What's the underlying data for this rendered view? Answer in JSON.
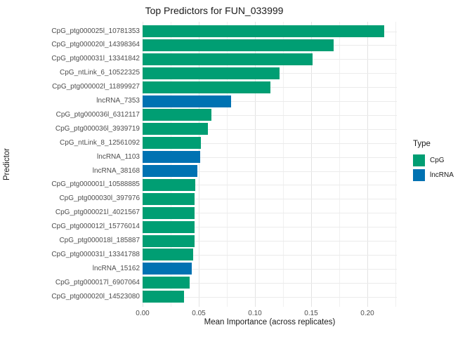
{
  "title": "Top Predictors for FUN_033999",
  "chart_data": {
    "type": "bar",
    "orientation": "horizontal",
    "title": "Top Predictors for FUN_033999",
    "xlabel": "Mean Importance (across replicates)",
    "ylabel": "Predictor",
    "xlim": [
      0,
      0.226
    ],
    "grid": true,
    "x_ticks": [
      0.0,
      0.05,
      0.1,
      0.15,
      0.2
    ],
    "x_tick_labels": [
      "0.00",
      "0.05",
      "0.10",
      "0.15",
      "0.20"
    ],
    "x_minor_ticks": [
      0.025,
      0.075,
      0.125,
      0.175,
      0.225
    ],
    "legend": {
      "title": "Type",
      "position": "right",
      "entries": [
        {
          "label": "CpG",
          "color": "#009E73"
        },
        {
          "label": "lncRNA",
          "color": "#0072B2"
        }
      ]
    },
    "bars": [
      {
        "label": "CpG_ptg000025l_10781353",
        "value": 0.215,
        "type": "CpG"
      },
      {
        "label": "CpG_ptg000020l_14398364",
        "value": 0.17,
        "type": "CpG"
      },
      {
        "label": "CpG_ptg000031l_13341842",
        "value": 0.151,
        "type": "CpG"
      },
      {
        "label": "CpG_ntLink_6_10522325",
        "value": 0.122,
        "type": "CpG"
      },
      {
        "label": "CpG_ptg000002l_11899927",
        "value": 0.114,
        "type": "CpG"
      },
      {
        "label": "lncRNA_7353",
        "value": 0.079,
        "type": "lncRNA"
      },
      {
        "label": "CpG_ptg000036l_6312117",
        "value": 0.061,
        "type": "CpG"
      },
      {
        "label": "CpG_ptg000036l_3939719",
        "value": 0.058,
        "type": "CpG"
      },
      {
        "label": "CpG_ntLink_8_12561092",
        "value": 0.052,
        "type": "CpG"
      },
      {
        "label": "lncRNA_1103",
        "value": 0.051,
        "type": "lncRNA"
      },
      {
        "label": "lncRNA_38168",
        "value": 0.049,
        "type": "lncRNA"
      },
      {
        "label": "CpG_ptg000001l_10588885",
        "value": 0.047,
        "type": "CpG"
      },
      {
        "label": "CpG_ptg000030l_397976",
        "value": 0.046,
        "type": "CpG"
      },
      {
        "label": "CpG_ptg000021l_4021567",
        "value": 0.046,
        "type": "CpG"
      },
      {
        "label": "CpG_ptg000012l_15776014",
        "value": 0.046,
        "type": "CpG"
      },
      {
        "label": "CpG_ptg000018l_185887",
        "value": 0.046,
        "type": "CpG"
      },
      {
        "label": "CpG_ptg000031l_13341788",
        "value": 0.045,
        "type": "CpG"
      },
      {
        "label": "lncRNA_15162",
        "value": 0.044,
        "type": "lncRNA"
      },
      {
        "label": "CpG_ptg000017l_6907064",
        "value": 0.042,
        "type": "CpG"
      },
      {
        "label": "CpG_ptg000020l_14523080",
        "value": 0.037,
        "type": "CpG"
      }
    ]
  }
}
